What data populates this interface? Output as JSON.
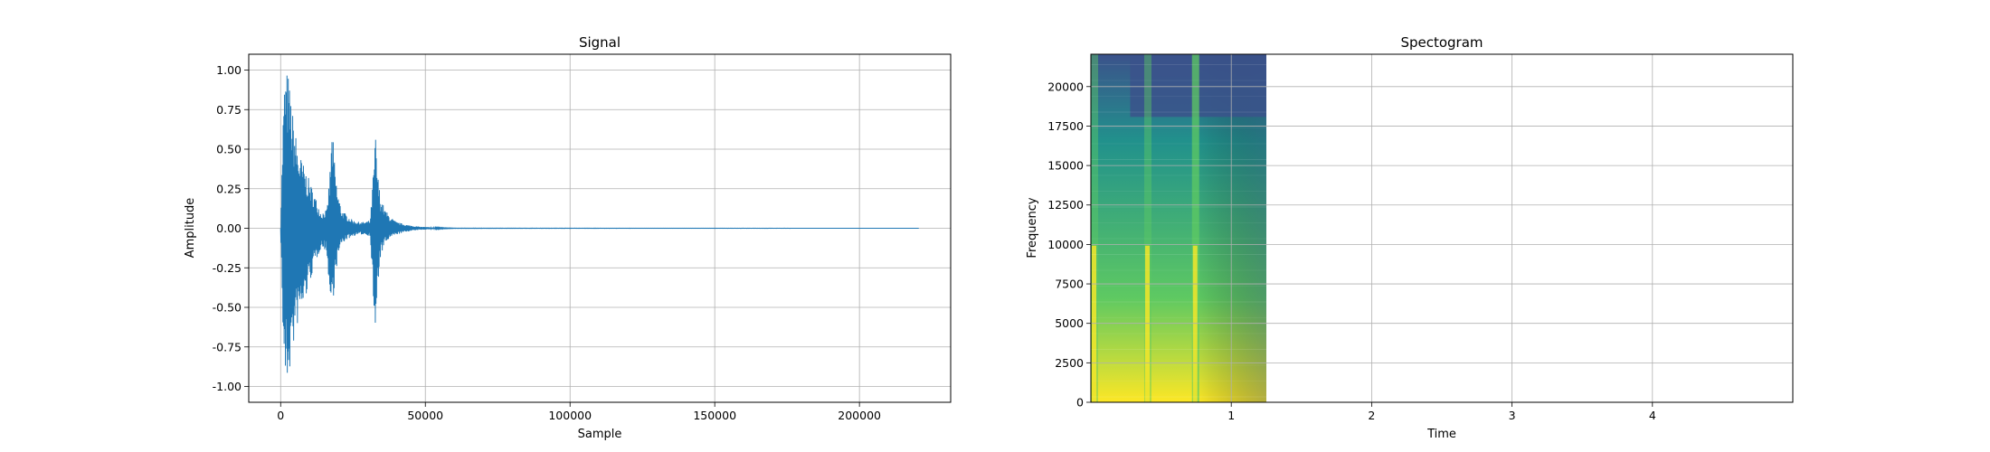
{
  "chart_data": [
    {
      "type": "line",
      "title": "Signal",
      "xlabel": "Sample",
      "ylabel": "Amplitude",
      "xlim": [
        -11025,
        231525
      ],
      "ylim": [
        -1.1,
        1.1
      ],
      "xticks": [
        0,
        50000,
        100000,
        150000,
        200000
      ],
      "yticks": [
        -1.0,
        -0.75,
        -0.5,
        -0.25,
        0.0,
        0.25,
        0.5,
        0.75,
        1.0
      ],
      "grid": true,
      "line_color": "#1f77b4",
      "x_range": [
        0,
        220500
      ],
      "envelope": {
        "x": [
          0,
          800,
          1500,
          2500,
          4000,
          6000,
          8000,
          10000,
          12000,
          14000,
          16000,
          17000,
          17800,
          18500,
          19500,
          21000,
          23000,
          25000,
          27000,
          29000,
          31000,
          32000,
          32800,
          33500,
          34500,
          36000,
          38000,
          40000,
          42000,
          44000,
          46000,
          48000,
          50000,
          53000,
          56000,
          60000,
          220500
        ],
        "upper": [
          0.0,
          0.7,
          1.0,
          1.0,
          0.75,
          0.5,
          0.4,
          0.3,
          0.2,
          0.1,
          0.12,
          0.35,
          0.65,
          0.45,
          0.25,
          0.12,
          0.08,
          0.05,
          0.04,
          0.04,
          0.05,
          0.35,
          0.6,
          0.35,
          0.2,
          0.12,
          0.07,
          0.04,
          0.03,
          0.02,
          0.015,
          0.01,
          0.008,
          0.005,
          0.003,
          0.001,
          0.0
        ],
        "lower": [
          0.0,
          -0.7,
          -1.0,
          -1.0,
          -0.8,
          -0.6,
          -0.5,
          -0.35,
          -0.22,
          -0.12,
          -0.15,
          -0.5,
          -0.48,
          -0.4,
          -0.22,
          -0.1,
          -0.07,
          -0.05,
          -0.04,
          -0.04,
          -0.05,
          -0.45,
          -0.78,
          -0.4,
          -0.18,
          -0.1,
          -0.06,
          -0.04,
          -0.03,
          -0.02,
          -0.015,
          -0.01,
          -0.008,
          -0.005,
          -0.003,
          -0.001,
          0.0
        ]
      }
    },
    {
      "type": "heatmap",
      "title": "Spectogram",
      "xlabel": "Time",
      "ylabel": "Frequency",
      "xlim": [
        0,
        5
      ],
      "ylim": [
        0,
        22050
      ],
      "xticks": [
        1,
        2,
        3,
        4
      ],
      "yticks": [
        0,
        2500,
        5000,
        7500,
        10000,
        12500,
        15000,
        17500,
        20000
      ],
      "grid": true,
      "colormap": "viridis",
      "data_extent_time": [
        0,
        1.25
      ],
      "colors": {
        "low": "#3b528b",
        "mid": "#21918c",
        "high": "#5ec962",
        "peak": "#fde725"
      },
      "onsets_time": [
        0,
        0.38,
        0.72
      ]
    }
  ]
}
